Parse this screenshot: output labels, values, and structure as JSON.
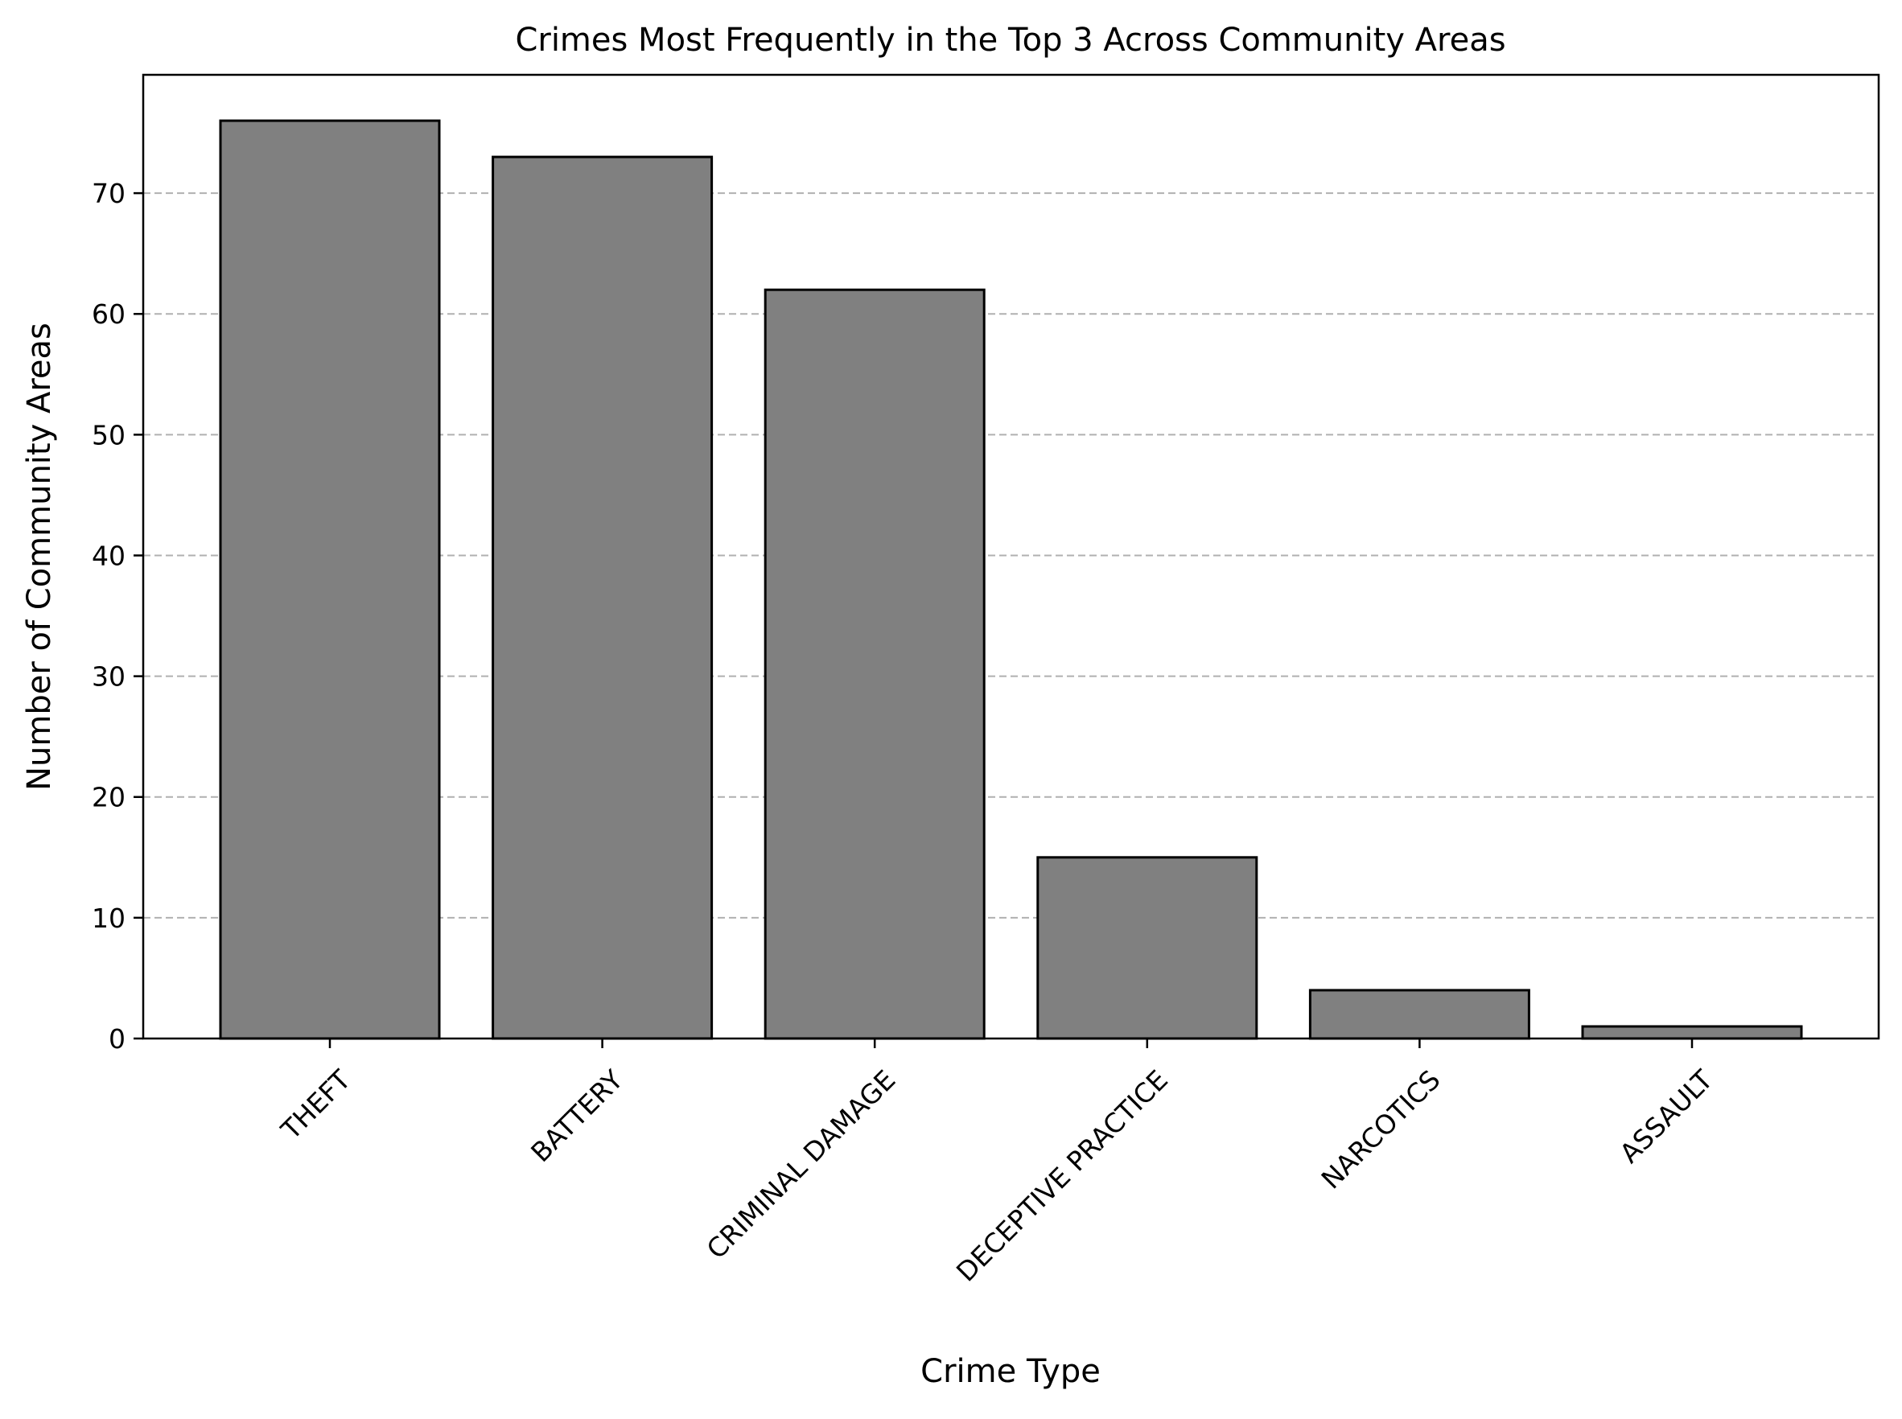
{
  "chart_data": {
    "type": "bar",
    "title": "Crimes Most Frequently in the Top 3 Across Community Areas",
    "xlabel": "Crime Type",
    "ylabel": "Number of Community Areas",
    "categories": [
      "THEFT",
      "BATTERY",
      "CRIMINAL DAMAGE",
      "DECEPTIVE PRACTICE",
      "NARCOTICS",
      "ASSAULT"
    ],
    "values": [
      76,
      73,
      62,
      15,
      4,
      1
    ],
    "ylim": [
      0,
      79.8
    ],
    "yticks": [
      0,
      10,
      20,
      30,
      40,
      50,
      60,
      70
    ],
    "grid": "y-dashed",
    "bar_color": "#808080",
    "edge_color": "#000000",
    "grid_color": "#b0b0b0"
  }
}
